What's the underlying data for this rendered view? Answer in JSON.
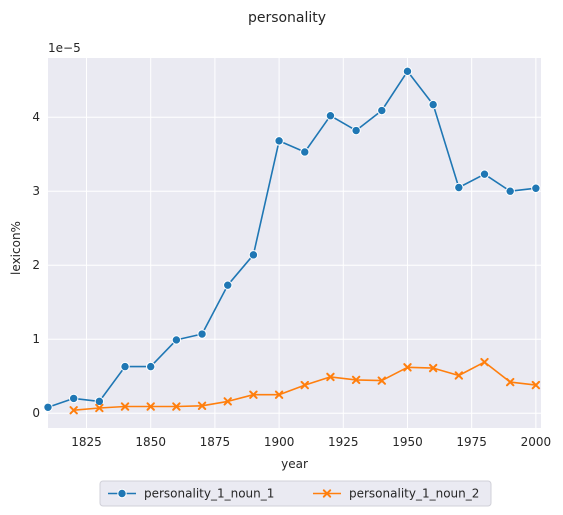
{
  "chart_data": {
    "type": "line",
    "title": "personality",
    "xlabel": "year",
    "ylabel": "lexicon%",
    "y_offset_label": "1e−5",
    "xlim": [
      1810,
      2002
    ],
    "ylim": [
      -0.2,
      4.8
    ],
    "x_ticks": [
      1825,
      1850,
      1875,
      1900,
      1925,
      1950,
      1975,
      2000
    ],
    "y_ticks": [
      0,
      1,
      2,
      3,
      4
    ],
    "grid": true,
    "legend_position": "bottom-center",
    "series": [
      {
        "name": "personality_1_noun_1",
        "color": "#1f77b4",
        "marker": "circle",
        "x": [
          1810,
          1820,
          1830,
          1840,
          1850,
          1860,
          1870,
          1880,
          1890,
          1900,
          1910,
          1920,
          1930,
          1940,
          1950,
          1960,
          1970,
          1980,
          1990,
          2000
        ],
        "y": [
          0.08,
          0.2,
          0.16,
          0.63,
          0.63,
          0.99,
          1.07,
          1.73,
          2.14,
          3.68,
          3.53,
          4.02,
          3.82,
          4.09,
          4.62,
          4.17,
          3.05,
          3.23,
          3.0,
          3.04
        ]
      },
      {
        "name": "personality_1_noun_2",
        "color": "#ff7f0e",
        "marker": "x",
        "x": [
          1820,
          1830,
          1840,
          1850,
          1860,
          1870,
          1880,
          1890,
          1900,
          1910,
          1920,
          1930,
          1940,
          1950,
          1960,
          1970,
          1980,
          1990,
          2000
        ],
        "y": [
          0.04,
          0.07,
          0.09,
          0.09,
          0.09,
          0.1,
          0.16,
          0.25,
          0.25,
          0.38,
          0.49,
          0.45,
          0.44,
          0.62,
          0.61,
          0.51,
          0.69,
          0.42,
          0.38
        ]
      }
    ]
  }
}
